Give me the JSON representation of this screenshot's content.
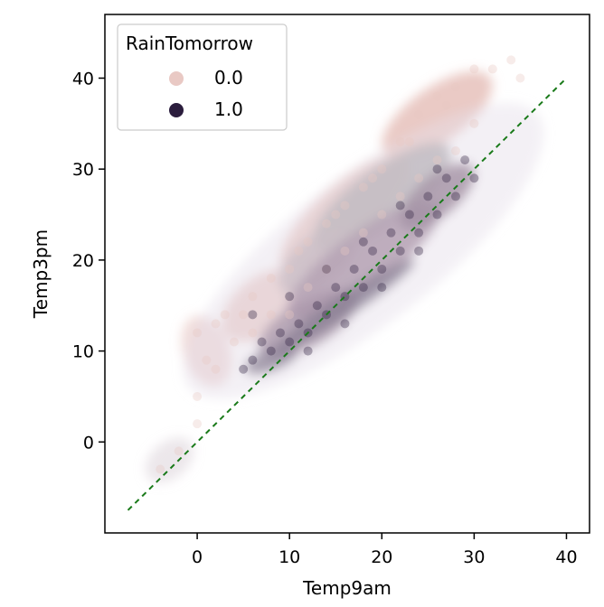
{
  "chart_data": {
    "type": "scatter",
    "xlabel": "Temp9am",
    "ylabel": "Temp3pm",
    "xlim": [
      -10,
      42.5
    ],
    "ylim": [
      -10,
      47
    ],
    "x_ticks": [
      0,
      10,
      20,
      30,
      40
    ],
    "y_ticks": [
      0,
      10,
      20,
      30,
      40
    ],
    "grid": false,
    "legend": {
      "title": "RainTomorrow",
      "placement": "top-left",
      "entries": [
        {
          "label": "0.0",
          "color": "#e9c9c4"
        },
        {
          "label": "1.0",
          "color": "#2b1d3d"
        }
      ]
    },
    "series": [
      {
        "name": "0.0",
        "color": "#e9c9c4",
        "opacity": 0.35,
        "points": [
          [
            -4,
            -3
          ],
          [
            -2,
            -1
          ],
          [
            0,
            2
          ],
          [
            0,
            5
          ],
          [
            1,
            9
          ],
          [
            0,
            12
          ],
          [
            2,
            13
          ],
          [
            3,
            14
          ],
          [
            5,
            14
          ],
          [
            6,
            16
          ],
          [
            8,
            18
          ],
          [
            10,
            19
          ],
          [
            12,
            22
          ],
          [
            14,
            24
          ],
          [
            16,
            26
          ],
          [
            18,
            28
          ],
          [
            20,
            30
          ],
          [
            22,
            33
          ],
          [
            24,
            36
          ],
          [
            26,
            38
          ],
          [
            28,
            39
          ],
          [
            30,
            41
          ],
          [
            32,
            41
          ],
          [
            34,
            42
          ],
          [
            35,
            40
          ],
          [
            8,
            14
          ],
          [
            12,
            17
          ],
          [
            16,
            21
          ],
          [
            20,
            25
          ],
          [
            24,
            29
          ],
          [
            28,
            32
          ],
          [
            10,
            14
          ],
          [
            14,
            19
          ],
          [
            18,
            23
          ],
          [
            22,
            27
          ],
          [
            26,
            31
          ],
          [
            30,
            35
          ],
          [
            6,
            12
          ],
          [
            4,
            11
          ],
          [
            2,
            8
          ],
          [
            11,
            21
          ],
          [
            15,
            25
          ],
          [
            19,
            29
          ],
          [
            23,
            33
          ],
          [
            27,
            37
          ]
        ]
      },
      {
        "name": "1.0",
        "color": "#2b1d3d",
        "opacity": 0.35,
        "points": [
          [
            5,
            8
          ],
          [
            6,
            9
          ],
          [
            8,
            10
          ],
          [
            10,
            11
          ],
          [
            12,
            12
          ],
          [
            14,
            14
          ],
          [
            16,
            16
          ],
          [
            18,
            17
          ],
          [
            20,
            19
          ],
          [
            22,
            21
          ],
          [
            24,
            23
          ],
          [
            26,
            25
          ],
          [
            28,
            27
          ],
          [
            30,
            29
          ],
          [
            7,
            11
          ],
          [
            9,
            12
          ],
          [
            11,
            13
          ],
          [
            13,
            15
          ],
          [
            15,
            17
          ],
          [
            17,
            19
          ],
          [
            19,
            21
          ],
          [
            21,
            23
          ],
          [
            23,
            25
          ],
          [
            25,
            27
          ],
          [
            27,
            29
          ],
          [
            29,
            31
          ],
          [
            6,
            14
          ],
          [
            10,
            16
          ],
          [
            14,
            19
          ],
          [
            18,
            22
          ],
          [
            22,
            26
          ],
          [
            26,
            30
          ],
          [
            12,
            10
          ],
          [
            16,
            13
          ],
          [
            20,
            17
          ],
          [
            24,
            21
          ]
        ]
      }
    ],
    "reference_line": {
      "style": "dashed",
      "color": "#1a7a1a",
      "x": [
        -7.5,
        40
      ],
      "y": [
        -7.5,
        40
      ]
    }
  }
}
